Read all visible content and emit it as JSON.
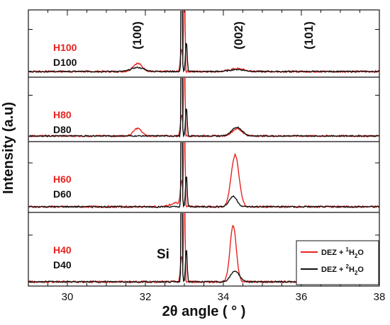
{
  "chart_data": {
    "type": "line",
    "xlabel": "2θ angle ( ° )",
    "ylabel": "Intensity (a.u)",
    "xlim": [
      29,
      38
    ],
    "xticks": [
      "30",
      "32",
      "34",
      "36",
      "38"
    ],
    "annotations": {
      "peaks": [
        {
          "text": "(100)",
          "x": 31.8
        },
        {
          "text": "(002)",
          "x": 34.4
        },
        {
          "text": "(101)",
          "x": 36.2
        }
      ],
      "si": {
        "text": "Si",
        "x": 32.4
      }
    },
    "legend": {
      "placement": "bottom-right",
      "entries": [
        {
          "label_main": "DEZ + ",
          "sup": "1",
          "label_tail1": "H",
          "sub": "2",
          "label_tail2": "O",
          "color": "#e8231f"
        },
        {
          "label_main": "DEZ + ",
          "sup": "2",
          "label_tail1": "H",
          "sub": "2",
          "label_tail2": "O",
          "color": "#111111"
        }
      ]
    },
    "colors": {
      "h_series": "#e8231f",
      "d_series": "#111111"
    },
    "panels": [
      {
        "red_label": "H100",
        "black_label": "D100",
        "red_peaks": [
          [
            31.8,
            0.14,
            0.12
          ],
          [
            34.35,
            0.05,
            0.18
          ]
        ],
        "black_peaks": [
          [
            31.8,
            0.07,
            0.16
          ],
          [
            34.35,
            0.035,
            0.18
          ]
        ]
      },
      {
        "red_label": "H80",
        "black_label": "D80",
        "red_peaks": [
          [
            31.8,
            0.14,
            0.1
          ],
          [
            34.35,
            0.13,
            0.13
          ]
        ],
        "black_peaks": [
          [
            34.35,
            0.16,
            0.13
          ]
        ]
      },
      {
        "red_label": "H60",
        "black_label": "D60",
        "red_peaks": [
          [
            34.3,
            0.85,
            0.1
          ],
          [
            32.8,
            0.06,
            0.15
          ]
        ],
        "black_peaks": [
          [
            34.25,
            0.17,
            0.1
          ]
        ]
      },
      {
        "red_label": "H40",
        "black_label": "D40",
        "red_peaks": [
          [
            34.25,
            0.88,
            0.08
          ]
        ],
        "black_peaks": [
          [
            34.3,
            0.17,
            0.11
          ]
        ]
      }
    ]
  }
}
